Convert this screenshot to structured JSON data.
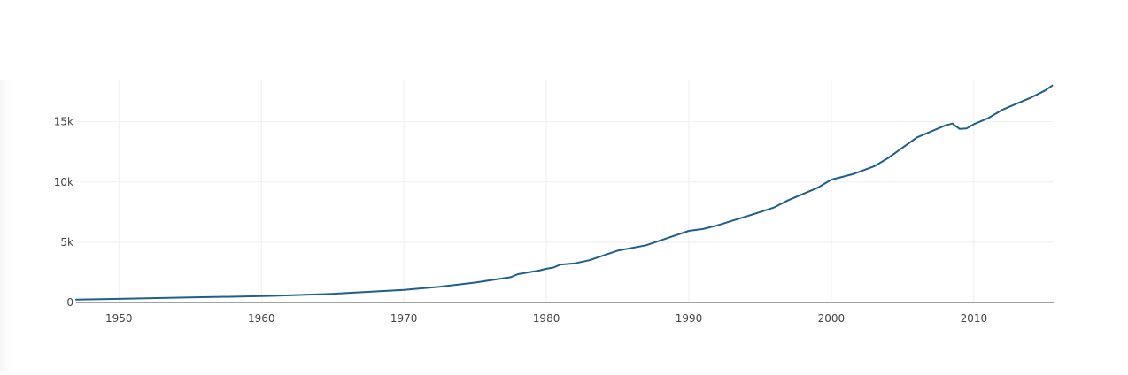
{
  "colors": {
    "line": "#1f5f8b",
    "grid": "#eeeeee",
    "zeroline": "#444444",
    "tick_text": "#444444",
    "background": "#ffffff"
  },
  "chart_data": {
    "type": "line",
    "title": "",
    "xlabel": "",
    "ylabel": "",
    "xlim": [
      1947,
      2015.6
    ],
    "ylim": [
      0,
      18500
    ],
    "x_ticks": [
      1950,
      1960,
      1970,
      1980,
      1990,
      2000,
      2010
    ],
    "x_tick_labels": [
      "1950",
      "1960",
      "1970",
      "1980",
      "1990",
      "2000",
      "2010"
    ],
    "y_ticks": [
      0,
      5000,
      10000,
      15000
    ],
    "y_tick_labels": [
      "0",
      "5k",
      "10k",
      "15k"
    ],
    "grid": true,
    "legend": "none",
    "series": [
      {
        "x": [
          1947,
          1950,
          1955,
          1960,
          1961,
          1965,
          1970,
          1972.5,
          1975,
          1977.5,
          1978,
          1979.5,
          1980,
          1980.5,
          1981,
          1982,
          1983,
          1985,
          1987,
          1990,
          1991,
          1992,
          1995,
          1996,
          1997,
          1999,
          2000,
          2001,
          2001.5,
          2003,
          2004,
          2006,
          2008,
          2008.5,
          2009,
          2009.5,
          2010,
          2011,
          2012,
          2013,
          2014,
          2015,
          2015.5
        ],
        "values": [
          245,
          300,
          420,
          530,
          560,
          720,
          1050,
          1300,
          1650,
          2100,
          2350,
          2650,
          2800,
          2900,
          3150,
          3250,
          3500,
          4300,
          4750,
          5950,
          6100,
          6400,
          7500,
          7900,
          8500,
          9500,
          10200,
          10500,
          10650,
          11300,
          12000,
          13700,
          14700,
          14850,
          14400,
          14450,
          14800,
          15300,
          16000,
          16500,
          17000,
          17600,
          18000
        ]
      }
    ]
  }
}
